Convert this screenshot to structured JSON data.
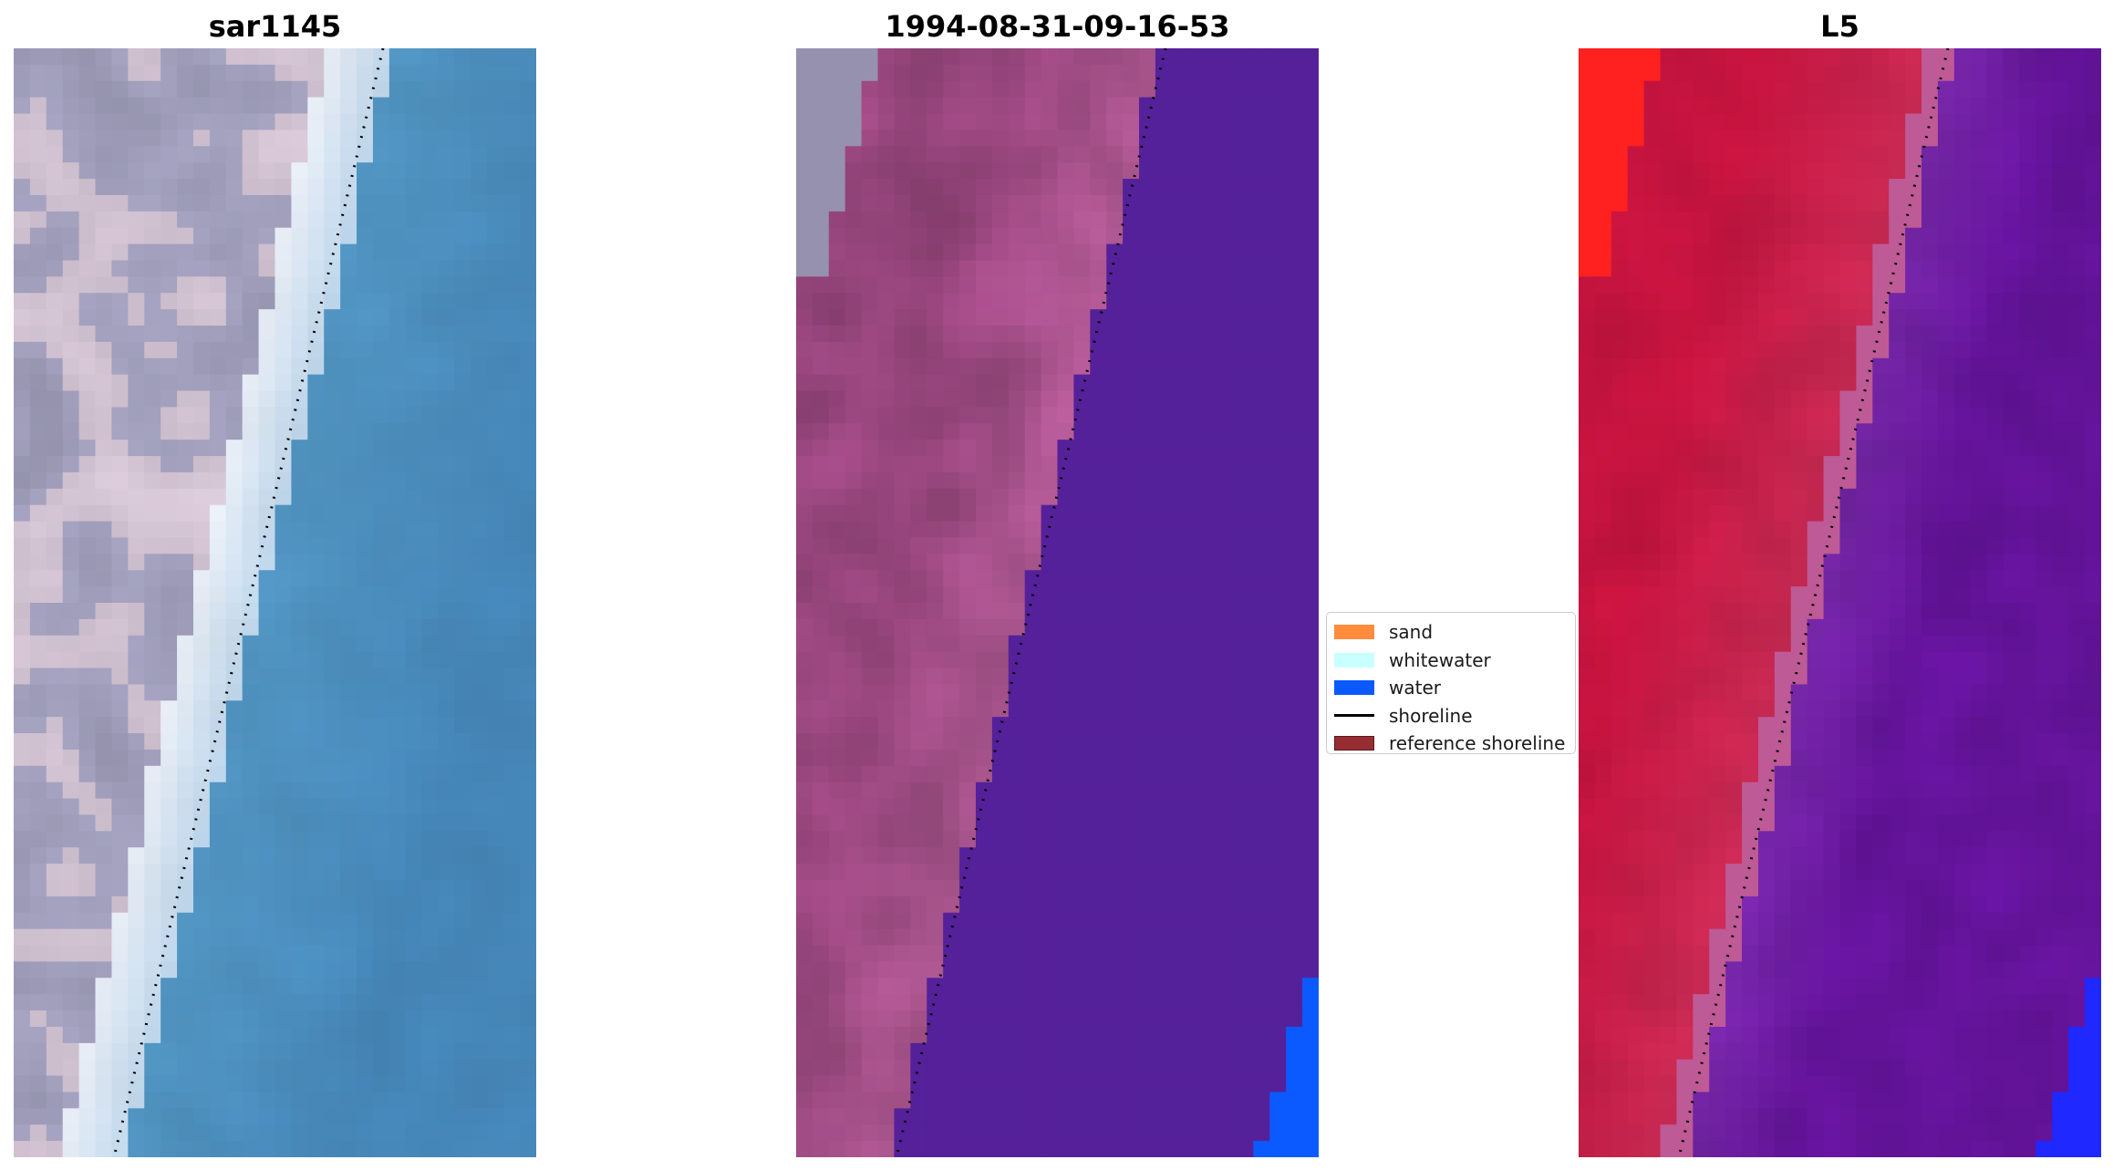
{
  "panels": [
    {
      "title": "sar1145",
      "image": "rgb-composite"
    },
    {
      "title": "1994-08-31-09-16-53",
      "image": "classified-overlay"
    },
    {
      "title": "L5",
      "image": "mndwi-index-map"
    }
  ],
  "legend": {
    "items": [
      {
        "label": "sand",
        "kind": "patch",
        "color": "#ff8c3c"
      },
      {
        "label": "whitewater",
        "kind": "patch",
        "color": "#c8ffff"
      },
      {
        "label": "water",
        "kind": "patch",
        "color": "#0a5aff"
      },
      {
        "label": "shoreline",
        "kind": "line",
        "color": "#000000"
      },
      {
        "label": "reference shoreline",
        "kind": "patch",
        "color": "#962d32"
      }
    ]
  },
  "colors": {
    "water_rgb": "#4687b9",
    "whitewater_rgb": "#e9eef6",
    "land_rgb": "#a8a6c4",
    "overlay_land": "#a04a84",
    "overlay_water": "#55219a",
    "overlay_blue": "#0a5aff",
    "index_land": "#c81440",
    "index_water": "#66149e",
    "index_red": "#ff2020",
    "index_blue": "#1e28ff"
  }
}
